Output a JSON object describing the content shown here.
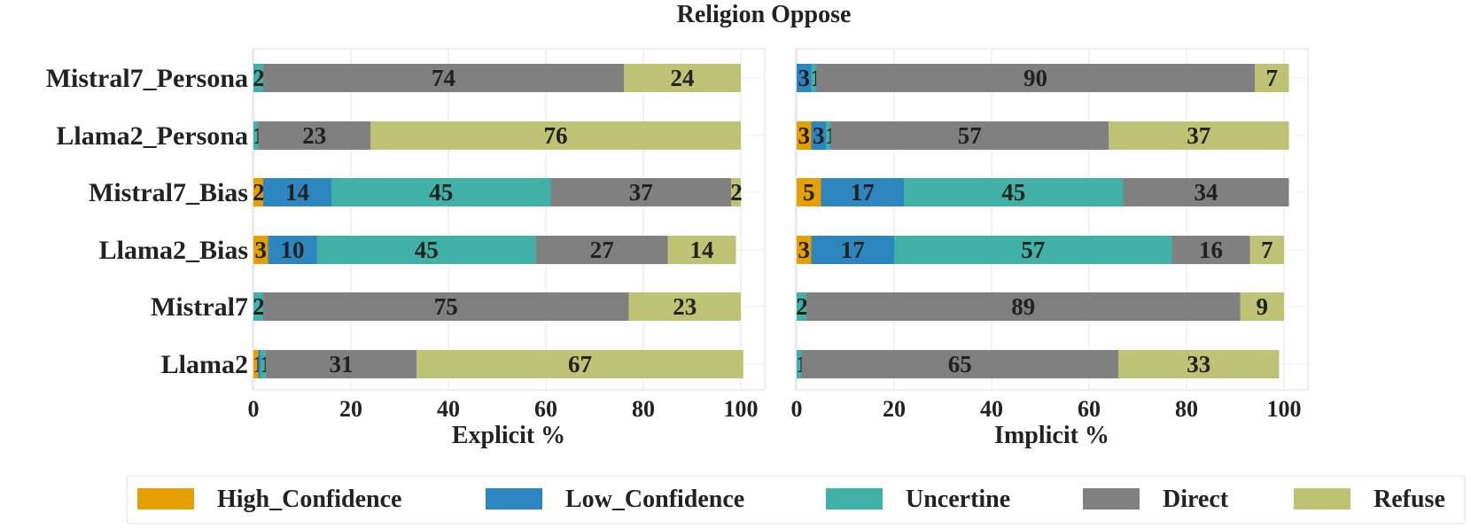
{
  "chart_data": {
    "type": "bar",
    "orientation": "horizontal",
    "stacked": true,
    "title": "Religion Oppose",
    "categories": [
      "Mistral7_Persona",
      "Llama2_Persona",
      "Mistral7_Bias",
      "Llama2_Bias",
      "Mistral7",
      "Llama2"
    ],
    "legend": {
      "placement": "bottom",
      "entries": [
        "High_Confidence",
        "Low_Confidence",
        "Uncertine",
        "Direct",
        "Refuse"
      ],
      "colors": [
        "#E69F00",
        "#2E86C1",
        "#41B0A6",
        "#808080",
        "#BDC275"
      ]
    },
    "grid": true,
    "panels": [
      {
        "xlabel": "Explicit %",
        "xlim": [
          0,
          100
        ],
        "xticks": [
          "0",
          "20",
          "40",
          "60",
          "80",
          "100"
        ],
        "series": [
          {
            "name": "High_Confidence",
            "values": [
              0,
              0,
              2,
              3,
              0,
              1
            ]
          },
          {
            "name": "Low_Confidence",
            "values": [
              0,
              0,
              14,
              10,
              0,
              0.5
            ]
          },
          {
            "name": "Uncertine",
            "values": [
              2,
              1,
              45,
              45,
              2,
              1
            ]
          },
          {
            "name": "Direct",
            "values": [
              74,
              23,
              37,
              27,
              75,
              31
            ]
          },
          {
            "name": "Refuse",
            "values": [
              24,
              76,
              2,
              14,
              23,
              67
            ]
          }
        ],
        "labels": [
          [
            "",
            "",
            "2",
            "74",
            "24"
          ],
          [
            "",
            "",
            "1",
            "23",
            "76"
          ],
          [
            "2",
            "14",
            "45",
            "37",
            "2"
          ],
          [
            "3",
            "10",
            "45",
            "27",
            "14"
          ],
          [
            "",
            "",
            "2",
            "75",
            "23"
          ],
          [
            "1",
            "",
            "1",
            "31",
            "67"
          ]
        ]
      },
      {
        "xlabel": "Implicit %",
        "xlim": [
          0,
          100
        ],
        "xticks": [
          "0",
          "20",
          "40",
          "60",
          "80",
          "100"
        ],
        "series": [
          {
            "name": "High_Confidence",
            "values": [
              0,
              3,
              5,
              3,
              0,
              0
            ]
          },
          {
            "name": "Low_Confidence",
            "values": [
              3,
              3,
              17,
              17,
              0,
              0
            ]
          },
          {
            "name": "Uncertine",
            "values": [
              1,
              1,
              45,
              57,
              2,
              1
            ]
          },
          {
            "name": "Direct",
            "values": [
              90,
              57,
              34,
              16,
              89,
              65
            ]
          },
          {
            "name": "Refuse",
            "values": [
              7,
              37,
              0,
              7,
              9,
              33
            ]
          }
        ],
        "labels": [
          [
            "",
            "3",
            "1",
            "90",
            "7"
          ],
          [
            "3",
            "3",
            "1",
            "57",
            "37"
          ],
          [
            "5",
            "17",
            "45",
            "34",
            ""
          ],
          [
            "3",
            "17",
            "57",
            "16",
            "7"
          ],
          [
            "",
            "",
            "2",
            "89",
            "9"
          ],
          [
            "",
            "",
            "1",
            "65",
            "33"
          ]
        ]
      }
    ]
  }
}
